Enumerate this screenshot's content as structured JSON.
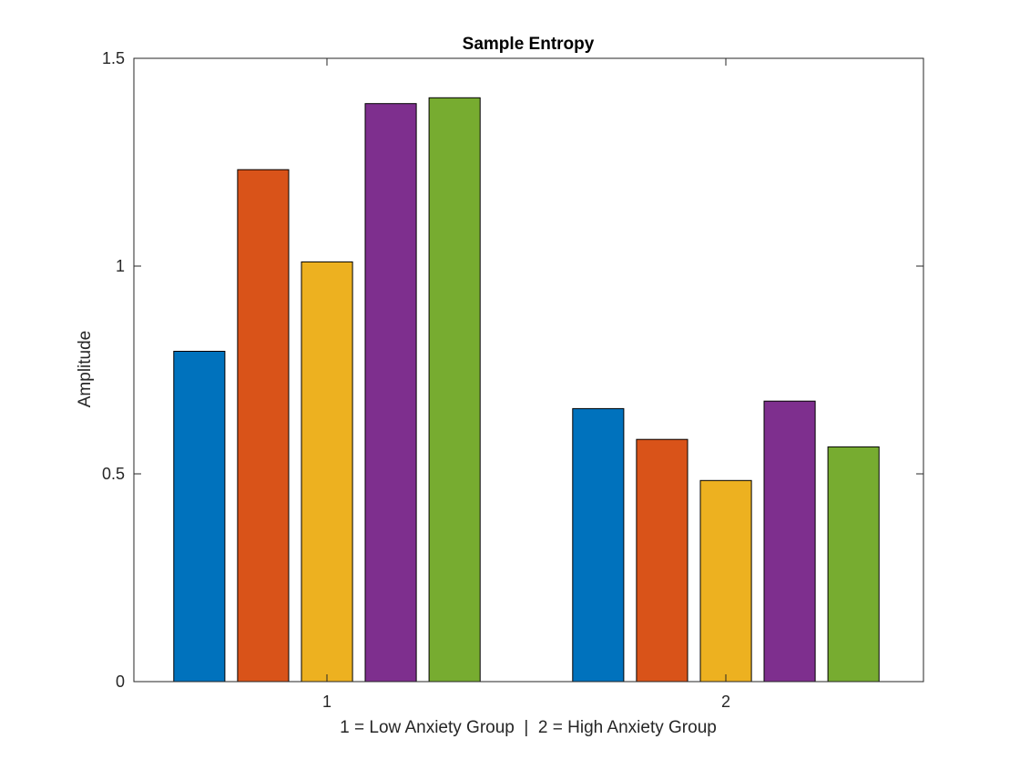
{
  "chart_data": {
    "type": "bar",
    "title": "Sample Entropy",
    "xlabel": "1 = Low Anxiety Group  |  2 = High Anxiety Group",
    "ylabel": "Amplitude",
    "categories": [
      "1",
      "2"
    ],
    "series": [
      {
        "values": [
          0.795,
          0.657
        ],
        "color": "#0072BD"
      },
      {
        "values": [
          1.232,
          0.583
        ],
        "color": "#D95319"
      },
      {
        "values": [
          1.01,
          0.484
        ],
        "color": "#EDB120"
      },
      {
        "values": [
          1.391,
          0.675
        ],
        "color": "#7E2F8E"
      },
      {
        "values": [
          1.405,
          0.565
        ],
        "color": "#77AC30"
      }
    ],
    "ylim": [
      0,
      1.5
    ],
    "yticks": [
      0,
      0.5,
      1,
      1.5
    ],
    "ytick_labels": [
      "0",
      "0.5",
      "1",
      "1.5"
    ],
    "grid": false,
    "legend": "none"
  }
}
